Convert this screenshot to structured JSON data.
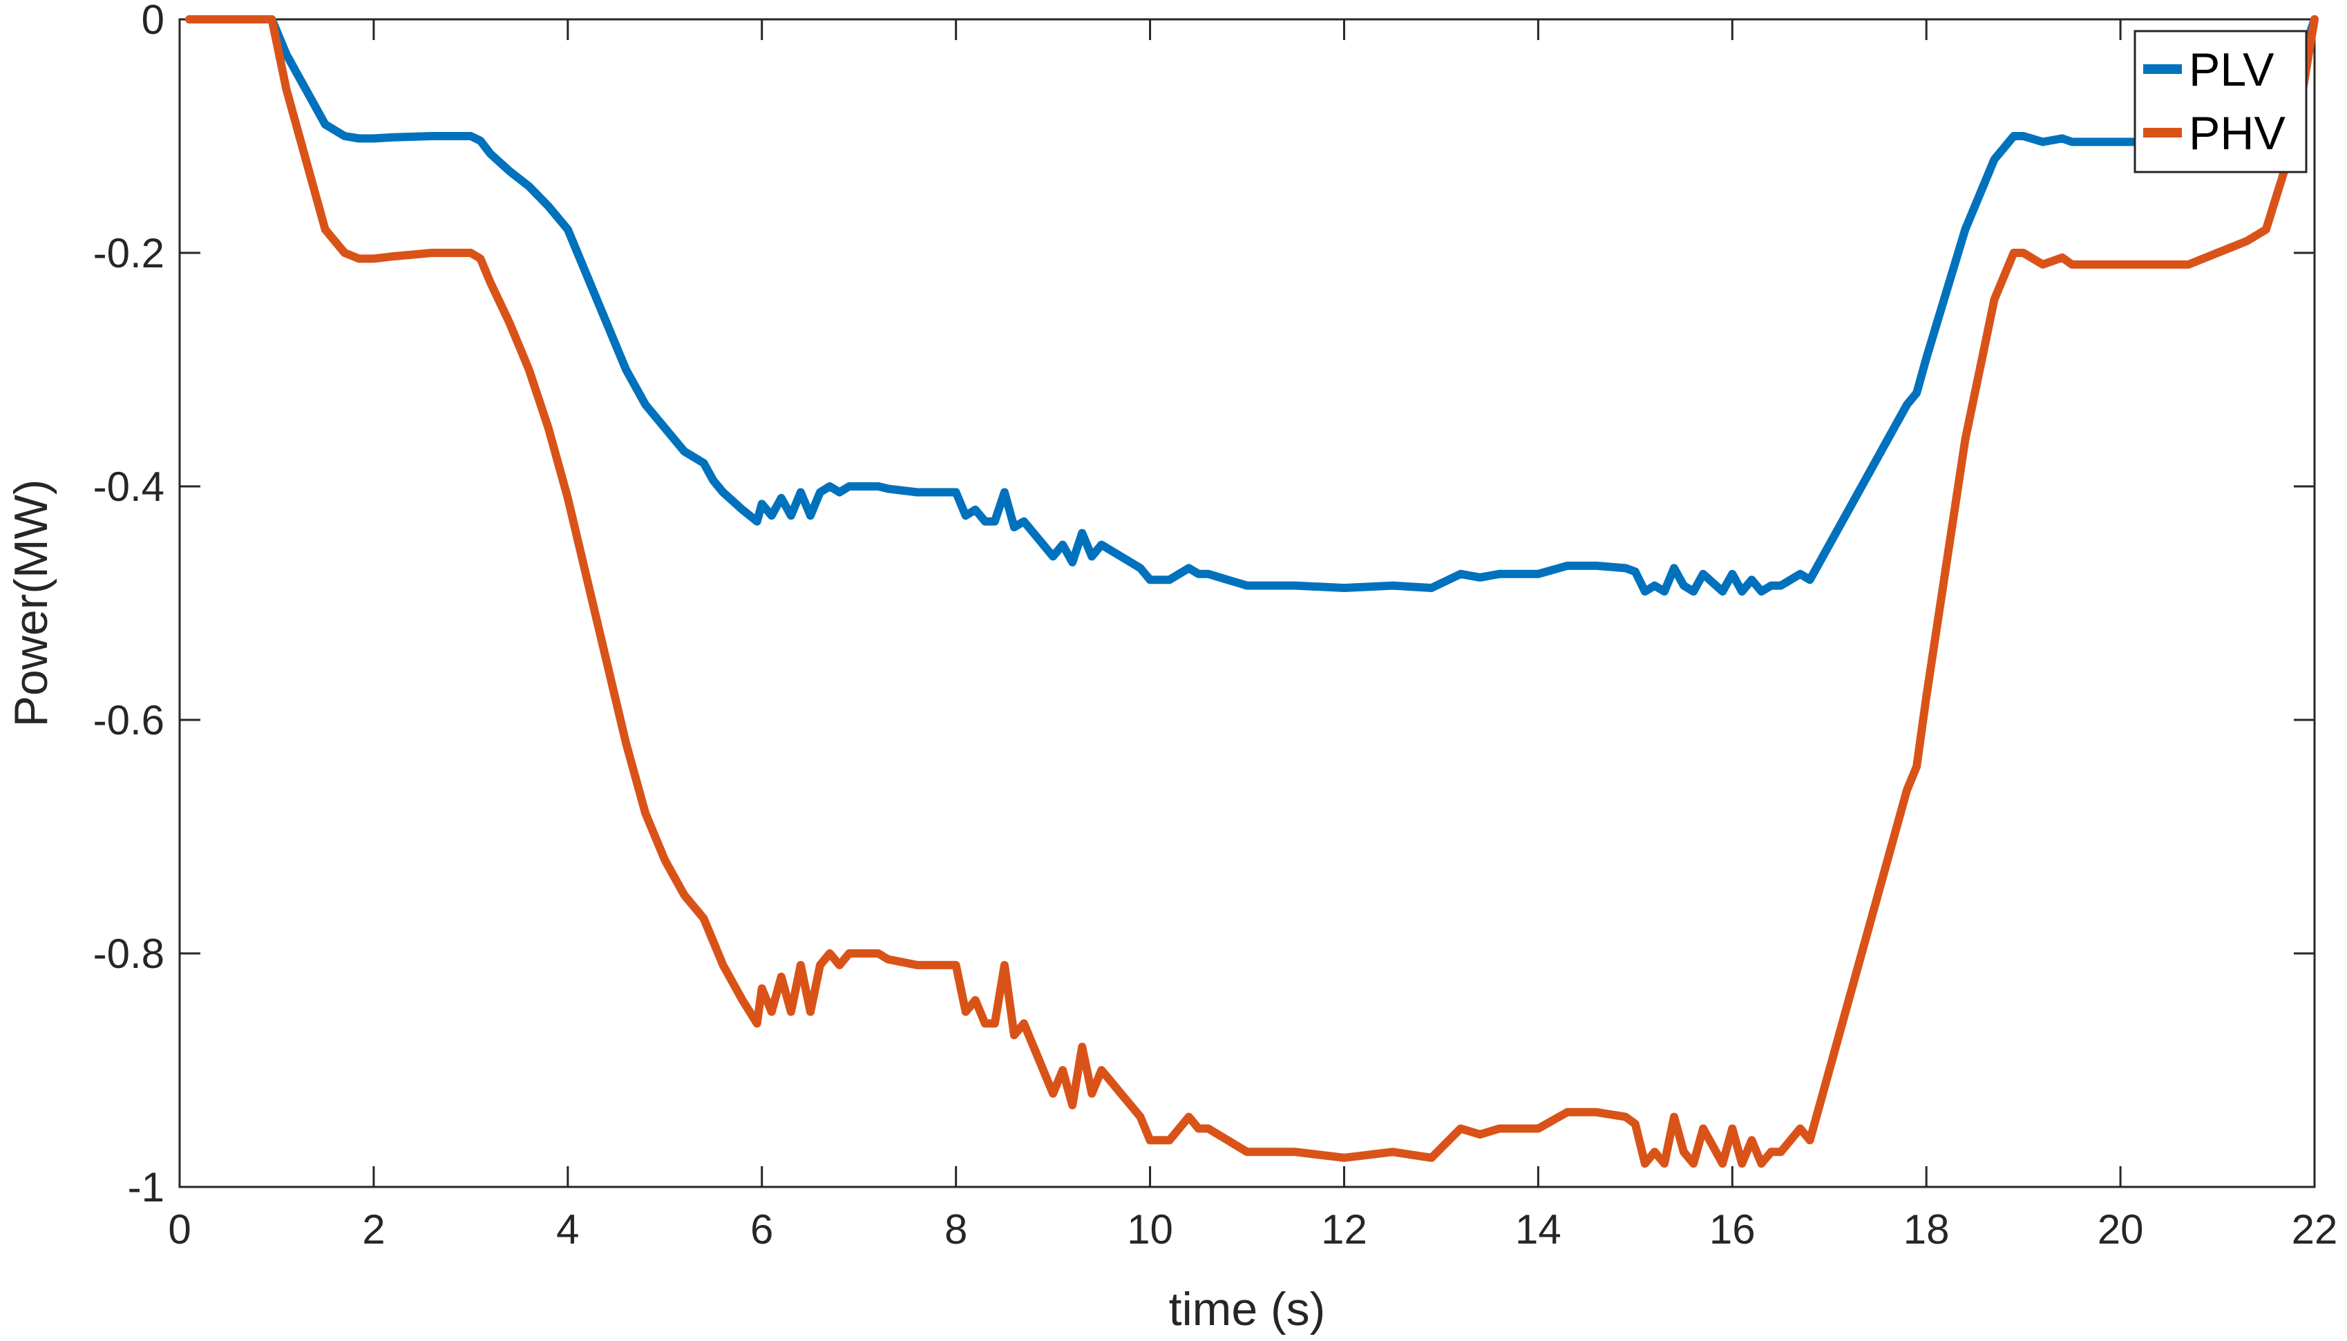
{
  "chart_data": {
    "type": "line",
    "title": "",
    "xlabel": "time (s)",
    "ylabel": "Power(MW)",
    "xlim": [
      0,
      22
    ],
    "ylim": [
      -1,
      0
    ],
    "xticks": [
      0,
      2,
      4,
      6,
      8,
      10,
      12,
      14,
      16,
      18,
      20,
      22
    ],
    "yticks": [
      0,
      -0.2,
      -0.4,
      -0.6,
      -0.8,
      -1
    ],
    "xtick_labels": [
      "0",
      "2",
      "4",
      "6",
      "8",
      "10",
      "12",
      "14",
      "16",
      "18",
      "20",
      "22"
    ],
    "ytick_labels": [
      "0",
      "-0.2",
      "-0.4",
      "-0.6",
      "-0.8",
      "-1"
    ],
    "grid": false,
    "box": true,
    "legend_position": "top-right",
    "series": [
      {
        "name": "PLV",
        "color": "#0072BD",
        "x": [
          0.1,
          0.5,
          0.95,
          1.0,
          1.1,
          1.3,
          1.5,
          1.7,
          1.85,
          2.0,
          2.2,
          2.6,
          3.0,
          3.1,
          3.2,
          3.4,
          3.6,
          3.8,
          4.0,
          4.2,
          4.4,
          4.6,
          4.8,
          4.9,
          5.0,
          5.2,
          5.4,
          5.5,
          5.6,
          5.8,
          5.95,
          6.0,
          6.1,
          6.2,
          6.3,
          6.4,
          6.5,
          6.6,
          6.7,
          6.8,
          6.9,
          7.0,
          7.2,
          7.3,
          7.6,
          8.0,
          8.1,
          8.2,
          8.3,
          8.4,
          8.5,
          8.6,
          8.7,
          8.8,
          9.0,
          9.1,
          9.2,
          9.3,
          9.4,
          9.5,
          9.6,
          9.7,
          9.8,
          9.9,
          10.0,
          10.2,
          10.4,
          10.5,
          10.6,
          10.8,
          11.0,
          11.2,
          11.5,
          12.0,
          12.5,
          12.9,
          13.2,
          13.4,
          13.6,
          14.0,
          14.3,
          14.6,
          14.9,
          15.0,
          15.1,
          15.2,
          15.3,
          15.4,
          15.5,
          15.6,
          15.7,
          15.9,
          16.0,
          16.1,
          16.2,
          16.3,
          16.4,
          16.5,
          16.7,
          16.8,
          17.0,
          17.2,
          17.4,
          17.6,
          17.8,
          17.9,
          18.0,
          18.2,
          18.4,
          18.5,
          18.6,
          18.7,
          18.9,
          19.0,
          19.2,
          19.4,
          19.5,
          19.7,
          20.0,
          20.2,
          20.5,
          20.7,
          21.0,
          21.3,
          21.5,
          21.8,
          22.0
        ],
        "y": [
          0,
          0,
          0,
          -0.01,
          -0.03,
          -0.06,
          -0.09,
          -0.1,
          -0.102,
          -0.102,
          -0.101,
          -0.1,
          -0.1,
          -0.104,
          -0.115,
          -0.13,
          -0.143,
          -0.16,
          -0.18,
          -0.22,
          -0.26,
          -0.3,
          -0.33,
          -0.34,
          -0.35,
          -0.37,
          -0.38,
          -0.395,
          -0.405,
          -0.42,
          -0.43,
          -0.415,
          -0.425,
          -0.41,
          -0.425,
          -0.405,
          -0.425,
          -0.405,
          -0.4,
          -0.405,
          -0.4,
          -0.4,
          -0.4,
          -0.402,
          -0.405,
          -0.405,
          -0.425,
          -0.42,
          -0.43,
          -0.43,
          -0.405,
          -0.435,
          -0.43,
          -0.44,
          -0.46,
          -0.45,
          -0.465,
          -0.44,
          -0.46,
          -0.45,
          -0.455,
          -0.46,
          -0.465,
          -0.47,
          -0.48,
          -0.48,
          -0.47,
          -0.475,
          -0.475,
          -0.48,
          -0.485,
          -0.485,
          -0.485,
          -0.487,
          -0.485,
          -0.487,
          -0.475,
          -0.478,
          -0.475,
          -0.475,
          -0.468,
          -0.468,
          -0.47,
          -0.473,
          -0.49,
          -0.485,
          -0.49,
          -0.47,
          -0.485,
          -0.49,
          -0.475,
          -0.49,
          -0.475,
          -0.49,
          -0.48,
          -0.49,
          -0.485,
          -0.485,
          -0.475,
          -0.48,
          -0.45,
          -0.42,
          -0.39,
          -0.36,
          -0.33,
          -0.32,
          -0.29,
          -0.235,
          -0.18,
          -0.16,
          -0.14,
          -0.12,
          -0.1,
          -0.1,
          -0.105,
          -0.102,
          -0.105,
          -0.105,
          -0.105,
          -0.105,
          -0.105,
          -0.105,
          -0.1,
          -0.095,
          -0.09,
          -0.05,
          0
        ]
      },
      {
        "name": "PHV",
        "color": "#D95319",
        "x": [
          0.1,
          0.5,
          0.95,
          1.0,
          1.1,
          1.3,
          1.5,
          1.7,
          1.85,
          2.0,
          2.2,
          2.6,
          3.0,
          3.1,
          3.2,
          3.4,
          3.6,
          3.8,
          4.0,
          4.2,
          4.4,
          4.6,
          4.8,
          4.9,
          5.0,
          5.2,
          5.4,
          5.5,
          5.6,
          5.8,
          5.95,
          6.0,
          6.1,
          6.2,
          6.3,
          6.4,
          6.5,
          6.6,
          6.7,
          6.8,
          6.9,
          7.0,
          7.2,
          7.3,
          7.6,
          8.0,
          8.1,
          8.2,
          8.3,
          8.4,
          8.5,
          8.6,
          8.7,
          8.8,
          9.0,
          9.1,
          9.2,
          9.3,
          9.4,
          9.5,
          9.6,
          9.7,
          9.8,
          9.9,
          10.0,
          10.2,
          10.4,
          10.5,
          10.6,
          10.8,
          11.0,
          11.2,
          11.5,
          12.0,
          12.5,
          12.9,
          13.2,
          13.4,
          13.6,
          14.0,
          14.3,
          14.6,
          14.9,
          15.0,
          15.1,
          15.2,
          15.3,
          15.4,
          15.5,
          15.6,
          15.7,
          15.9,
          16.0,
          16.1,
          16.2,
          16.3,
          16.4,
          16.5,
          16.7,
          16.8,
          17.0,
          17.2,
          17.4,
          17.6,
          17.8,
          17.9,
          18.0,
          18.2,
          18.4,
          18.5,
          18.6,
          18.7,
          18.9,
          19.0,
          19.2,
          19.4,
          19.5,
          19.7,
          20.0,
          20.2,
          20.5,
          20.7,
          21.0,
          21.3,
          21.5,
          21.8,
          22.0
        ],
        "y": [
          0,
          0,
          0,
          -0.02,
          -0.06,
          -0.12,
          -0.18,
          -0.2,
          -0.205,
          -0.205,
          -0.203,
          -0.2,
          -0.2,
          -0.205,
          -0.225,
          -0.26,
          -0.3,
          -0.35,
          -0.41,
          -0.48,
          -0.55,
          -0.62,
          -0.68,
          -0.7,
          -0.72,
          -0.75,
          -0.77,
          -0.79,
          -0.81,
          -0.84,
          -0.86,
          -0.83,
          -0.85,
          -0.82,
          -0.85,
          -0.81,
          -0.85,
          -0.81,
          -0.8,
          -0.81,
          -0.8,
          -0.8,
          -0.8,
          -0.805,
          -0.81,
          -0.81,
          -0.85,
          -0.84,
          -0.86,
          -0.86,
          -0.81,
          -0.87,
          -0.86,
          -0.88,
          -0.92,
          -0.9,
          -0.93,
          -0.88,
          -0.92,
          -0.9,
          -0.91,
          -0.92,
          -0.93,
          -0.94,
          -0.96,
          -0.96,
          -0.94,
          -0.95,
          -0.95,
          -0.96,
          -0.97,
          -0.97,
          -0.97,
          -0.975,
          -0.97,
          -0.975,
          -0.95,
          -0.955,
          -0.95,
          -0.95,
          -0.936,
          -0.936,
          -0.94,
          -0.946,
          -0.98,
          -0.97,
          -0.98,
          -0.94,
          -0.97,
          -0.98,
          -0.95,
          -0.98,
          -0.95,
          -0.98,
          -0.96,
          -0.98,
          -0.97,
          -0.97,
          -0.95,
          -0.96,
          -0.9,
          -0.84,
          -0.78,
          -0.72,
          -0.66,
          -0.64,
          -0.58,
          -0.47,
          -0.36,
          -0.32,
          -0.28,
          -0.24,
          -0.2,
          -0.2,
          -0.21,
          -0.204,
          -0.21,
          -0.21,
          -0.21,
          -0.21,
          -0.21,
          -0.21,
          -0.2,
          -0.19,
          -0.18,
          -0.1,
          0
        ]
      }
    ]
  }
}
